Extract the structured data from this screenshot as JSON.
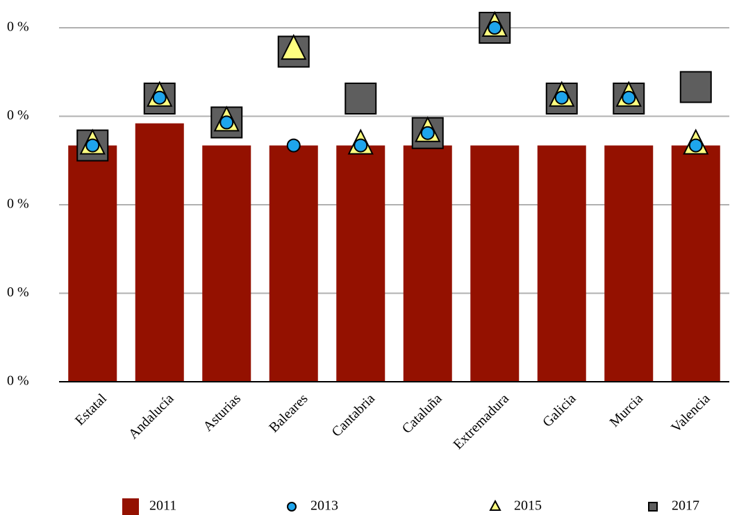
{
  "chart_data": {
    "type": "bar",
    "categories": [
      "Estatal",
      "Andalucía",
      "Asturias",
      "Baleares",
      "Cantabria",
      "Cataluña",
      "Extremadura",
      "Galicia",
      "Murcia",
      "Valencia"
    ],
    "series": [
      {
        "name": "2011",
        "color": "#941100",
        "marker": "bar",
        "values": [
          0.267,
          0.292,
          0.267,
          0.267,
          0.267,
          0.267,
          0.267,
          0.267,
          0.267,
          0.267
        ]
      },
      {
        "name": "2013",
        "color": "#1ea5ec",
        "marker": "circle",
        "values": [
          0.267,
          0.321,
          0.293,
          0.267,
          0.267,
          0.281,
          0.4,
          0.321,
          0.321,
          0.267
        ]
      },
      {
        "name": "2015",
        "color": "#ffff80",
        "marker": "triangle",
        "values": [
          0.267,
          0.321,
          0.293,
          0.374,
          0.267,
          0.281,
          0.4,
          0.321,
          0.321,
          0.267
        ]
      },
      {
        "name": "2017",
        "color": "#5e5e5e",
        "marker": "square",
        "values": [
          0.267,
          0.32,
          0.293,
          0.373,
          0.32,
          0.281,
          0.4,
          0.32,
          0.32,
          0.333
        ]
      }
    ],
    "ylim": [
      0,
      0.4
    ],
    "yticks": [
      {
        "value": 0,
        "label": "0 %"
      },
      {
        "value": 0.1,
        "label": "0 %"
      },
      {
        "value": 0.2,
        "label": "0 %"
      },
      {
        "value": 0.3,
        "label": "0 %"
      },
      {
        "value": 0.4,
        "label": "0 %"
      }
    ],
    "grid": true
  }
}
